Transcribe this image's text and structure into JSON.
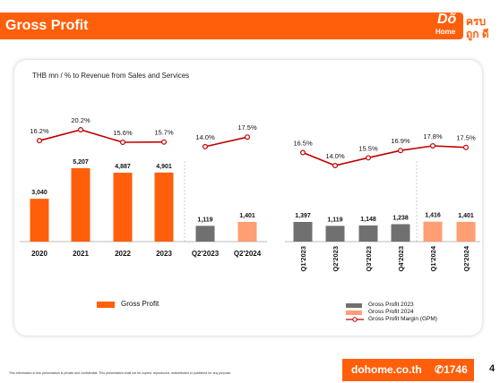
{
  "header": {
    "title": "Gross Profit"
  },
  "logo": {
    "mark_top": "Dõ",
    "mark_bottom": "Home",
    "tag_line1": "ครบ",
    "tag_line2": "ถูก ดี"
  },
  "subtitle": "THB mn / % to Revenue from Sales and Services",
  "chart_data": [
    {
      "type": "bar",
      "categories": [
        "2020",
        "2021",
        "2022",
        "2023",
        "Q2'2023",
        "Q2'2024"
      ],
      "value_labels": [
        "3,040",
        "5,207",
        "4,887",
        "4,901",
        "1,119",
        "1,401"
      ],
      "values": [
        3040,
        5207,
        4887,
        4901,
        1119,
        1401
      ],
      "margin_labels": [
        "16.2%",
        "20.2%",
        "15.6%",
        "15.7%",
        "14.0%",
        "17.5%"
      ],
      "margins": [
        16.2,
        20.2,
        15.6,
        15.7,
        14.0,
        17.5
      ],
      "colors": [
        "#FF5F0A",
        "#FF5F0A",
        "#FF5F0A",
        "#FF5F0A",
        "#707070",
        "#FF9E72"
      ],
      "legend": [
        {
          "label": "Gross Profit",
          "color": "#FF5F0A"
        }
      ]
    },
    {
      "type": "bar",
      "categories": [
        "Q1'2023",
        "Q2'2023",
        "Q3'2023",
        "Q4'2023",
        "Q1'2024",
        "Q2'2024"
      ],
      "value_labels": [
        "1,397",
        "1,119",
        "1,148",
        "1,238",
        "1,416",
        "1,401"
      ],
      "values": [
        1397,
        1119,
        1148,
        1238,
        1416,
        1401
      ],
      "margin_labels": [
        "16.5%",
        "14.0%",
        "15.5%",
        "16.9%",
        "17.8%",
        "17.5%"
      ],
      "margins": [
        16.5,
        14.0,
        15.5,
        16.9,
        17.8,
        17.5
      ],
      "colors": [
        "#707070",
        "#707070",
        "#707070",
        "#707070",
        "#FF9E72",
        "#FF9E72"
      ],
      "legend": [
        {
          "label": "Gross Profit 2023",
          "color": "#707070"
        },
        {
          "label": "Gross Profit 2024",
          "color": "#FF9E72"
        },
        {
          "label": "Gross Profit Margin (GPM)",
          "color": "#C00000"
        }
      ]
    }
  ],
  "footer": {
    "note": "This information in this presentation is private and confidential. This presentation shall not be copied, reproduced, redistributed or published for any purpose.",
    "website": "dohome.co.th",
    "phone": "1746",
    "page": "4"
  }
}
